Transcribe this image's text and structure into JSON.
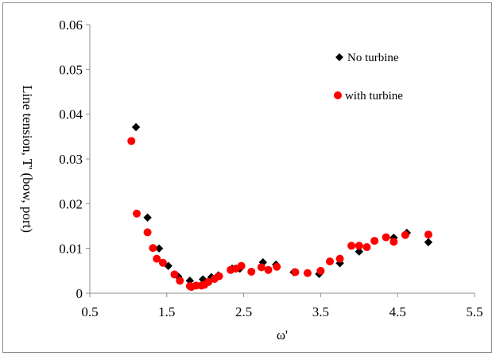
{
  "chart_data": {
    "type": "scatter",
    "title": "",
    "xlabel": "ω'",
    "ylabel": "Line tension, T'  (bow, port)",
    "xlim": [
      0.5,
      5.5
    ],
    "ylim": [
      0,
      0.06
    ],
    "xticks": [
      "0.5",
      "1.5",
      "2.5",
      "3.5",
      "4.5",
      "5.5"
    ],
    "yticks": [
      "0",
      "0.01",
      "0.02",
      "0.03",
      "0.04",
      "0.05",
      "0.06"
    ],
    "grid": false,
    "legend_position": "top-right",
    "series": [
      {
        "name": "No turbine",
        "marker": "diamond",
        "color": "#000000",
        "points": [
          [
            1.1,
            0.0371
          ],
          [
            1.25,
            0.0169
          ],
          [
            1.4,
            0.01
          ],
          [
            1.52,
            0.0061
          ],
          [
            1.65,
            0.0037
          ],
          [
            1.8,
            0.0028
          ],
          [
            1.97,
            0.0031
          ],
          [
            2.08,
            0.0036
          ],
          [
            2.17,
            0.004
          ],
          [
            2.35,
            0.0055
          ],
          [
            2.45,
            0.0055
          ],
          [
            2.75,
            0.0069
          ],
          [
            2.92,
            0.0064
          ],
          [
            3.15,
            0.0047
          ],
          [
            3.33,
            0.0045
          ],
          [
            3.48,
            0.0043
          ],
          [
            3.75,
            0.0067
          ],
          [
            4.0,
            0.0093
          ],
          [
            4.45,
            0.0124
          ],
          [
            4.62,
            0.0135
          ],
          [
            4.9,
            0.0114
          ]
        ]
      },
      {
        "name": "with turbine",
        "marker": "circle",
        "color": "#ff0000",
        "points": [
          [
            1.04,
            0.034
          ],
          [
            1.11,
            0.0178
          ],
          [
            1.25,
            0.0136
          ],
          [
            1.32,
            0.0101
          ],
          [
            1.37,
            0.0077
          ],
          [
            1.45,
            0.0068
          ],
          [
            1.6,
            0.0042
          ],
          [
            1.67,
            0.0028
          ],
          [
            1.8,
            0.0016
          ],
          [
            1.82,
            0.0014
          ],
          [
            1.88,
            0.0017
          ],
          [
            1.95,
            0.0017
          ],
          [
            1.99,
            0.0019
          ],
          [
            2.04,
            0.0025
          ],
          [
            2.12,
            0.0032
          ],
          [
            2.18,
            0.0038
          ],
          [
            2.33,
            0.0052
          ],
          [
            2.4,
            0.0055
          ],
          [
            2.47,
            0.0061
          ],
          [
            2.6,
            0.0048
          ],
          [
            2.73,
            0.0058
          ],
          [
            2.82,
            0.0052
          ],
          [
            2.93,
            0.0059
          ],
          [
            3.17,
            0.0047
          ],
          [
            3.33,
            0.0045
          ],
          [
            3.5,
            0.005
          ],
          [
            3.62,
            0.0071
          ],
          [
            3.75,
            0.0077
          ],
          [
            3.9,
            0.0106
          ],
          [
            4.0,
            0.0106
          ],
          [
            4.1,
            0.0103
          ],
          [
            4.2,
            0.0117
          ],
          [
            4.35,
            0.0125
          ],
          [
            4.45,
            0.0115
          ],
          [
            4.6,
            0.013
          ],
          [
            4.9,
            0.0131
          ]
        ]
      }
    ]
  }
}
